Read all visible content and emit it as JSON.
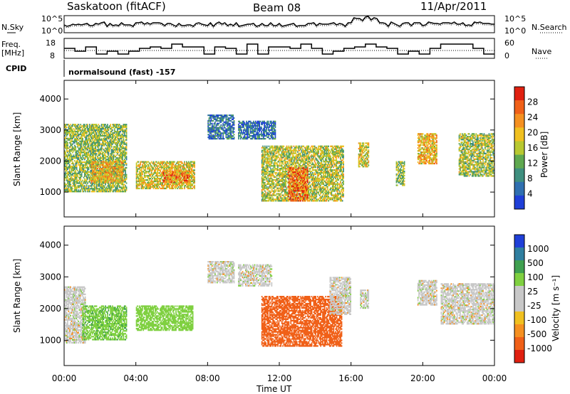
{
  "header": {
    "station": "Saskatoon (fitACF)",
    "beam": "Beam 08",
    "date": "11/Apr/2011"
  },
  "top_panels": {
    "nsky_label": "N.Sky",
    "nsky_ticks": [
      "10^5",
      "10^0"
    ],
    "nsearch_label": "N.Search",
    "nsearch_ticks": [
      "10^5",
      "10^0"
    ],
    "freq_label_1": "Freq.",
    "freq_label_2": "[MHz]",
    "freq_ticks": [
      "18",
      "8"
    ],
    "nave_label": "Nave",
    "nave_ticks": [
      "60",
      "0"
    ],
    "cpid_label": "CPID",
    "cpid_text": "normalsound (fast) -157"
  },
  "colors": {
    "power": [
      "#1f3fd8",
      "#2f6fb0",
      "#3f8f7f",
      "#5fa84f",
      "#b8c830",
      "#f0c020",
      "#f59020",
      "#f06018",
      "#e02010"
    ],
    "velocity": [
      "#e02010",
      "#f06018",
      "#f59020",
      "#f0c020",
      "#c8c8c8",
      "#c8c8c8",
      "#7fd040",
      "#3fa050",
      "#2f7fa0",
      "#1f3fd8"
    ]
  },
  "chart_data": [
    {
      "type": "heatmap",
      "panel": "power",
      "ylabel": "Slant Range [km]",
      "yticks": [
        "1000",
        "2000",
        "3000",
        "4000"
      ],
      "ylim": [
        200,
        4600
      ],
      "xlim_hours": [
        0,
        24
      ],
      "colorbar_label": "Power [dB]",
      "colorbar_ticks": [
        "4",
        "8",
        "12",
        "16",
        "20",
        "24",
        "28"
      ],
      "colorbar_range": [
        0,
        32
      ],
      "regions": [
        {
          "t0": 0.0,
          "t1": 3.5,
          "r0": 1000,
          "r1": 3200,
          "level": 14
        },
        {
          "t0": 1.5,
          "t1": 3.3,
          "r0": 1300,
          "r1": 2000,
          "level": 20
        },
        {
          "t0": 4.0,
          "t1": 7.3,
          "r0": 1100,
          "r1": 2000,
          "level": 18
        },
        {
          "t0": 5.5,
          "t1": 7.0,
          "r0": 1300,
          "r1": 1700,
          "level": 24
        },
        {
          "t0": 8.0,
          "t1": 9.5,
          "r0": 2700,
          "r1": 3500,
          "level": 6
        },
        {
          "t0": 9.7,
          "t1": 11.8,
          "r0": 2700,
          "r1": 3300,
          "level": 6
        },
        {
          "t0": 11.0,
          "t1": 15.6,
          "r0": 700,
          "r1": 2500,
          "level": 16
        },
        {
          "t0": 12.5,
          "t1": 13.6,
          "r0": 700,
          "r1": 1800,
          "level": 26
        },
        {
          "t0": 16.4,
          "t1": 17.0,
          "r0": 1800,
          "r1": 2600,
          "level": 18
        },
        {
          "t0": 18.5,
          "t1": 19.0,
          "r0": 1200,
          "r1": 2000,
          "level": 14
        },
        {
          "t0": 19.7,
          "t1": 20.8,
          "r0": 1900,
          "r1": 2900,
          "level": 20
        },
        {
          "t0": 22.0,
          "t1": 24.0,
          "r0": 1500,
          "r1": 2900,
          "level": 15
        }
      ]
    },
    {
      "type": "heatmap",
      "panel": "velocity",
      "ylabel": "Slant Range [km]",
      "yticks": [
        "1000",
        "2000",
        "3000",
        "4000"
      ],
      "ylim": [
        200,
        4600
      ],
      "xlim_hours": [
        0,
        24
      ],
      "colorbar_label": "Velocity [m s⁻¹]",
      "colorbar_ticks": [
        "1000",
        "500",
        "100",
        "25",
        "-25",
        "-100",
        "-500",
        "-1000"
      ],
      "regions": [
        {
          "t0": 0.0,
          "t1": 1.2,
          "r0": 900,
          "r1": 2700,
          "level": 0
        },
        {
          "t0": 1.0,
          "t1": 3.5,
          "r0": 1000,
          "r1": 2100,
          "level": 80
        },
        {
          "t0": 4.0,
          "t1": 7.2,
          "r0": 1300,
          "r1": 2100,
          "level": 60
        },
        {
          "t0": 8.0,
          "t1": 9.5,
          "r0": 2800,
          "r1": 3500,
          "level": 0
        },
        {
          "t0": 9.7,
          "t1": 11.6,
          "r0": 2700,
          "r1": 3400,
          "level": 0
        },
        {
          "t0": 11.0,
          "t1": 15.5,
          "r0": 800,
          "r1": 2400,
          "level": -160
        },
        {
          "t0": 14.8,
          "t1": 16.0,
          "r0": 1800,
          "r1": 3000,
          "level": 0
        },
        {
          "t0": 16.5,
          "t1": 17.0,
          "r0": 2000,
          "r1": 2600,
          "level": 0
        },
        {
          "t0": 19.7,
          "t1": 20.8,
          "r0": 2100,
          "r1": 2900,
          "level": 0
        },
        {
          "t0": 21.0,
          "t1": 24.0,
          "r0": 1500,
          "r1": 2800,
          "level": 0
        }
      ]
    }
  ],
  "xaxis": {
    "label": "Time UT",
    "ticks": [
      "00:00",
      "04:00",
      "08:00",
      "12:00",
      "16:00",
      "20:00",
      "00:00"
    ]
  }
}
